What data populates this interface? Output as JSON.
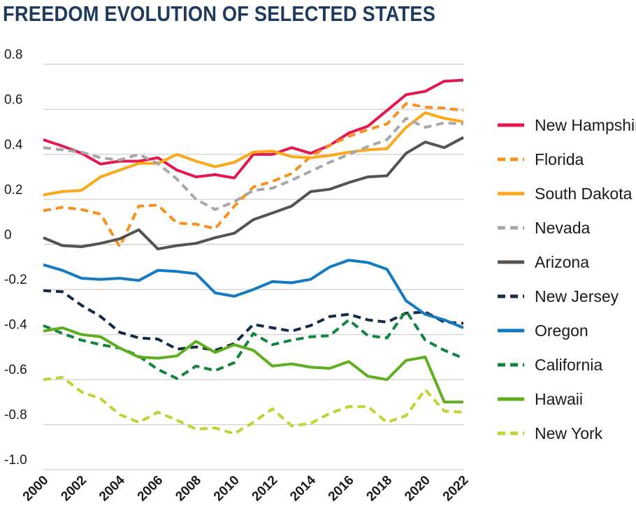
{
  "chart_data": {
    "type": "line",
    "title": "FREEDOM EVOLUTION OF SELECTED STATES",
    "xlabel": "",
    "ylabel": "",
    "ylim": [
      -1.0,
      0.8
    ],
    "xlim": [
      2000,
      2022
    ],
    "yticks": [
      0.8,
      0.6,
      0.4,
      0.2,
      0,
      -0.2,
      -0.4,
      -0.6,
      -0.8,
      -1.0
    ],
    "ytick_labels": [
      "0.8",
      "0.6",
      "0.4",
      "0.2",
      "0",
      "-0.2",
      "-0.4",
      "-0.6",
      "-0.8",
      "-1.0"
    ],
    "xticks": [
      2000,
      2002,
      2004,
      2006,
      2008,
      2010,
      2012,
      2014,
      2016,
      2018,
      2020,
      2022
    ],
    "xtick_labels": [
      "2000",
      "2002",
      "2004",
      "2006",
      "2008",
      "2010",
      "2012",
      "2014",
      "2016",
      "2018",
      "2020",
      "2022"
    ],
    "grid": "horizontal",
    "legend_position": "right",
    "x": [
      2000,
      2001,
      2002,
      2003,
      2004,
      2005,
      2006,
      2007,
      2008,
      2009,
      2010,
      2011,
      2012,
      2013,
      2014,
      2015,
      2016,
      2017,
      2018,
      2019,
      2020,
      2021,
      2022
    ],
    "series": [
      {
        "name": "New Hampshire",
        "color": "#e4184f",
        "dashed": false,
        "values": [
          0.465,
          0.437,
          0.405,
          0.357,
          0.37,
          0.37,
          0.385,
          0.33,
          0.3,
          0.31,
          0.295,
          0.4,
          0.4,
          0.43,
          0.405,
          0.44,
          0.495,
          0.525,
          0.595,
          0.665,
          0.68,
          0.725,
          0.73
        ]
      },
      {
        "name": "Florida",
        "color": "#f7901e",
        "dashed": true,
        "values": [
          0.15,
          0.165,
          0.155,
          0.135,
          -0.01,
          0.17,
          0.175,
          0.095,
          0.09,
          0.07,
          0.17,
          0.255,
          0.28,
          0.315,
          0.39,
          0.44,
          0.48,
          0.51,
          0.535,
          0.625,
          0.61,
          0.605,
          0.595
        ]
      },
      {
        "name": "South Dakota",
        "color": "#fca81b",
        "dashed": false,
        "values": [
          0.22,
          0.235,
          0.24,
          0.3,
          0.33,
          0.36,
          0.36,
          0.4,
          0.37,
          0.345,
          0.365,
          0.41,
          0.415,
          0.39,
          0.385,
          0.395,
          0.41,
          0.42,
          0.425,
          0.52,
          0.585,
          0.56,
          0.545
        ]
      },
      {
        "name": "Nevada",
        "color": "#a7a7a9",
        "dashed": true,
        "values": [
          0.43,
          0.42,
          0.41,
          0.385,
          0.375,
          0.4,
          0.36,
          0.29,
          0.2,
          0.155,
          0.19,
          0.24,
          0.25,
          0.285,
          0.325,
          0.365,
          0.4,
          0.435,
          0.465,
          0.56,
          0.52,
          0.54,
          0.535
        ]
      },
      {
        "name": "Arizona",
        "color": "#58524e",
        "dashed": false,
        "values": [
          0.03,
          -0.005,
          -0.01,
          0.005,
          0.025,
          0.065,
          -0.02,
          -0.005,
          0.005,
          0.03,
          0.05,
          0.11,
          0.14,
          0.17,
          0.235,
          0.245,
          0.275,
          0.3,
          0.305,
          0.405,
          0.455,
          0.43,
          0.475
        ]
      },
      {
        "name": "New Jersey",
        "color": "#142c47",
        "dashed": true,
        "values": [
          -0.205,
          -0.21,
          -0.27,
          -0.32,
          -0.39,
          -0.415,
          -0.42,
          -0.465,
          -0.455,
          -0.47,
          -0.44,
          -0.355,
          -0.37,
          -0.385,
          -0.36,
          -0.32,
          -0.31,
          -0.335,
          -0.345,
          -0.305,
          -0.3,
          -0.345,
          -0.35
        ]
      },
      {
        "name": "Oregon",
        "color": "#1279c3",
        "dashed": false,
        "values": [
          -0.09,
          -0.115,
          -0.15,
          -0.155,
          -0.15,
          -0.16,
          -0.115,
          -0.12,
          -0.13,
          -0.215,
          -0.23,
          -0.2,
          -0.165,
          -0.17,
          -0.155,
          -0.1,
          -0.07,
          -0.08,
          -0.11,
          -0.25,
          -0.31,
          -0.335,
          -0.37
        ]
      },
      {
        "name": "California",
        "color": "#11853e",
        "dashed": true,
        "values": [
          -0.36,
          -0.395,
          -0.425,
          -0.445,
          -0.46,
          -0.495,
          -0.555,
          -0.595,
          -0.54,
          -0.56,
          -0.525,
          -0.395,
          -0.445,
          -0.425,
          -0.41,
          -0.405,
          -0.335,
          -0.405,
          -0.415,
          -0.295,
          -0.425,
          -0.47,
          -0.505
        ]
      },
      {
        "name": "Hawaii",
        "color": "#5daf1f",
        "dashed": false,
        "values": [
          -0.385,
          -0.37,
          -0.4,
          -0.41,
          -0.46,
          -0.5,
          -0.505,
          -0.495,
          -0.43,
          -0.48,
          -0.445,
          -0.47,
          -0.54,
          -0.53,
          -0.545,
          -0.55,
          -0.52,
          -0.585,
          -0.6,
          -0.515,
          -0.5,
          -0.7,
          -0.7
        ]
      },
      {
        "name": "New York",
        "color": "#bfd430",
        "dashed": true,
        "values": [
          -0.6,
          -0.59,
          -0.655,
          -0.685,
          -0.755,
          -0.79,
          -0.745,
          -0.78,
          -0.82,
          -0.815,
          -0.84,
          -0.79,
          -0.73,
          -0.805,
          -0.795,
          -0.75,
          -0.72,
          -0.72,
          -0.79,
          -0.76,
          -0.645,
          -0.74,
          -0.745
        ]
      }
    ]
  }
}
